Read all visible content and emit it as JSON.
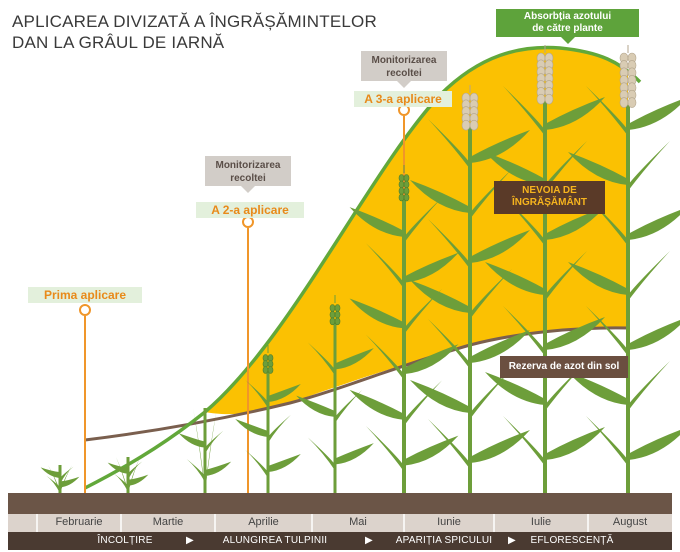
{
  "title": {
    "line1": "APLICAREA DIVIZATĂ A ÎNGRĂȘĂMINTELOR",
    "line2": "DAN LA GRÂUL DE IARNĂ"
  },
  "applications": [
    {
      "label": "Prima aplicare"
    },
    {
      "label": "A 2-a aplicare"
    },
    {
      "label": "A 3-a aplicare"
    }
  ],
  "monitoring": [
    {
      "line1": "Monitorizarea",
      "line2": "recoltei"
    },
    {
      "line1": "Monitorizarea",
      "line2": "recoltei"
    }
  ],
  "absorption": {
    "line1": "Absorbția azotului",
    "line2": "de către plante"
  },
  "need": {
    "line1": "NEVOIA DE",
    "line2": "ÎNGRĂȘĂMÂNT"
  },
  "reserve": {
    "label": "Rezerva de azot din sol"
  },
  "months": [
    "Februarie",
    "Martie",
    "Aprilie",
    "Mai",
    "Iunie",
    "Iulie",
    "August"
  ],
  "phases": [
    "ÎNCOLȚIRE",
    "ALUNGIREA TULPINII",
    "APARIȚIA SPICULUI",
    "EFLORESCENȚĂ"
  ],
  "colors": {
    "need_fill": "#fbc102",
    "absorption_curve": "#62a83a",
    "soil_reserve_curve": "#7a5f4e",
    "application_line": "#f0962a",
    "soil": "#6b5547",
    "month_bar": "#dcd3cc",
    "phase_bar": "#4a3a31",
    "plant": "#6d9e3a",
    "wheat_head": "#d9ccb4"
  }
}
